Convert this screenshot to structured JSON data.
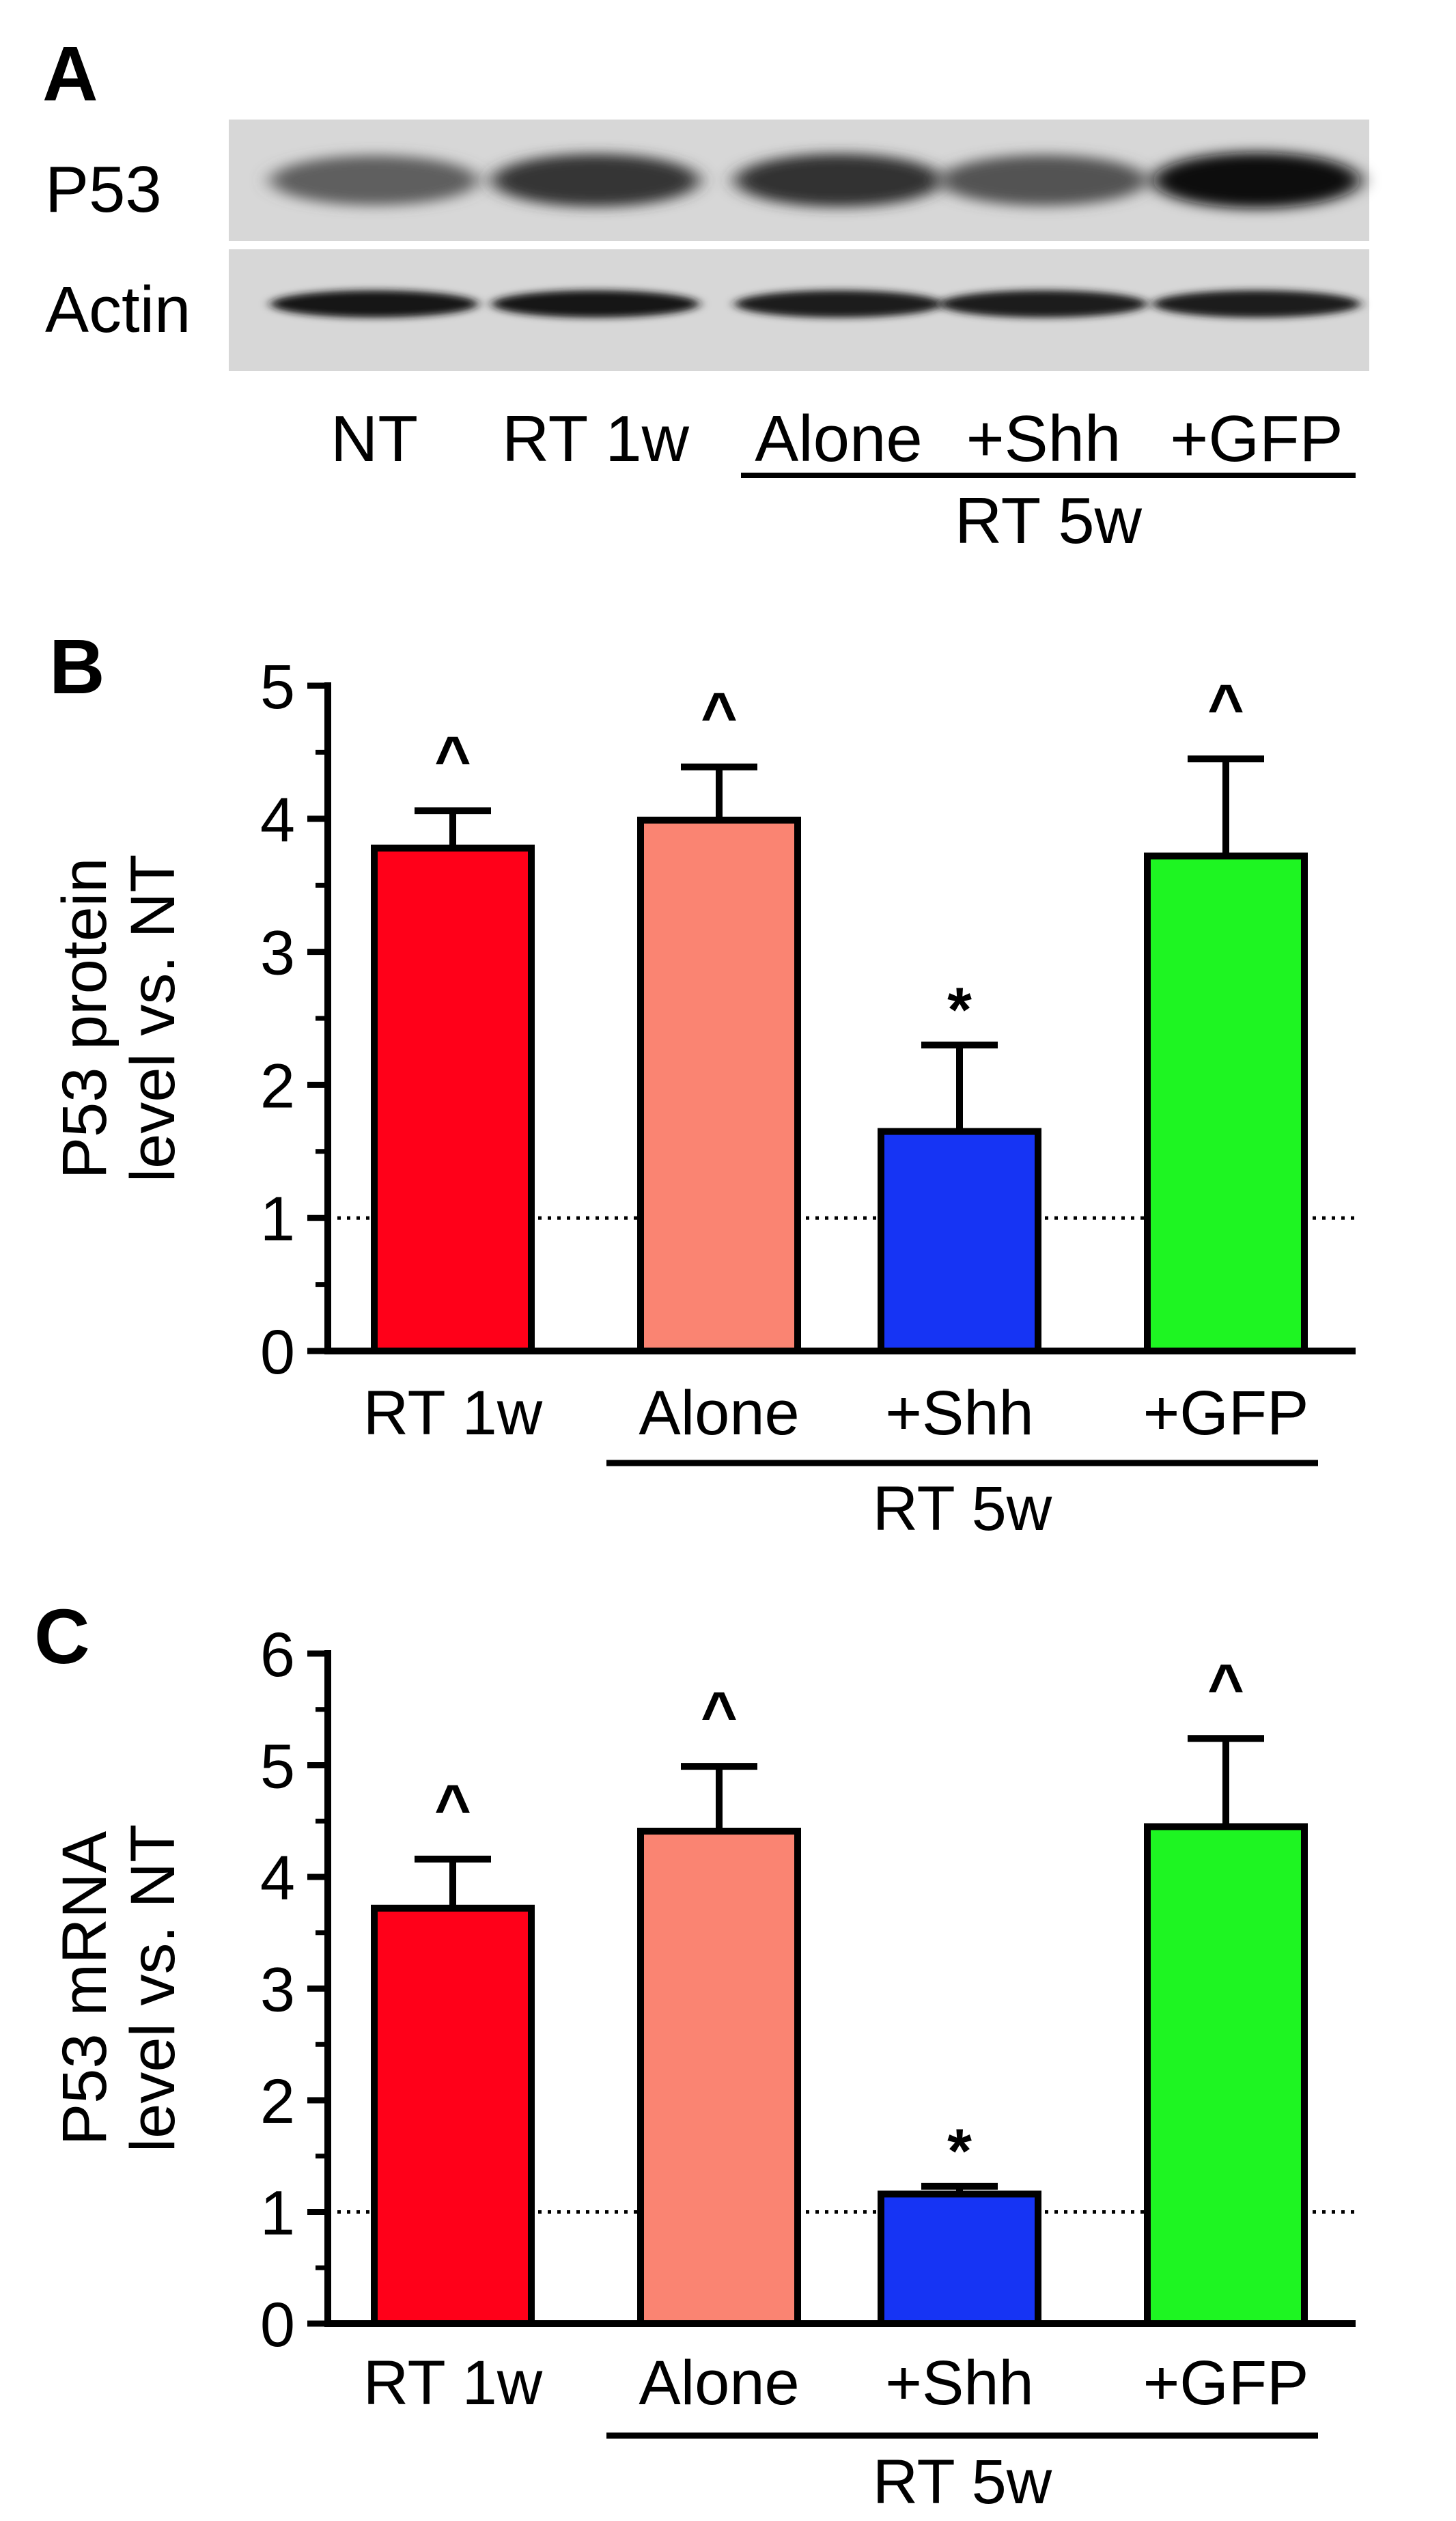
{
  "figure": {
    "panel_a": {
      "letter": "A",
      "blot_rows": [
        {
          "label": "P53",
          "intensities": [
            0.55,
            0.78,
            0.8,
            0.62,
            1.0
          ]
        },
        {
          "label": "Actin",
          "intensities": [
            0.95,
            0.95,
            0.93,
            0.92,
            0.93
          ]
        }
      ],
      "lane_labels": [
        "NT",
        "RT 1w",
        "Alone",
        "+Shh",
        "+GFP"
      ],
      "group_label": "RT 5w"
    },
    "colors": {
      "bar_fills": [
        "#ff0019",
        "#fa8472",
        "#1634f4",
        "#1ef522"
      ],
      "stroke": "#000000",
      "blot_background": "#d7d7d7"
    }
  },
  "chart_data": [
    {
      "type": "bar",
      "panel_letter": "B",
      "ylabel_lines": [
        "P53 protein",
        "level vs. NT"
      ],
      "categories": [
        "RT 1w",
        "Alone",
        "+Shh",
        "+GFP"
      ],
      "group_label": "RT 5w",
      "group_members": [
        "Alone",
        "+Shh",
        "+GFP"
      ],
      "values": [
        3.78,
        3.99,
        1.65,
        3.72
      ],
      "errors": [
        0.28,
        0.4,
        0.65,
        0.73
      ],
      "significance": [
        "^",
        "^",
        "*",
        "^"
      ],
      "ylim": [
        0,
        5
      ],
      "yticks": [
        "0",
        "1",
        "2",
        "3",
        "4",
        "5"
      ],
      "minor_tick_step": 0.5,
      "reference_line": 1
    },
    {
      "type": "bar",
      "panel_letter": "C",
      "ylabel_lines": [
        "P53 mRNA",
        "level vs. NT"
      ],
      "categories": [
        "RT 1w",
        "Alone",
        "+Shh",
        "+GFP"
      ],
      "group_label": "RT 5w",
      "group_members": [
        "Alone",
        "+Shh",
        "+GFP"
      ],
      "values": [
        3.72,
        4.41,
        1.16,
        4.45
      ],
      "errors": [
        0.44,
        0.58,
        0.07,
        0.79
      ],
      "significance": [
        "^",
        "^",
        "*",
        "^"
      ],
      "ylim": [
        0,
        6
      ],
      "yticks": [
        "0",
        "1",
        "2",
        "3",
        "4",
        "5",
        "6"
      ],
      "minor_tick_step": 0.5,
      "reference_line": 1
    }
  ]
}
